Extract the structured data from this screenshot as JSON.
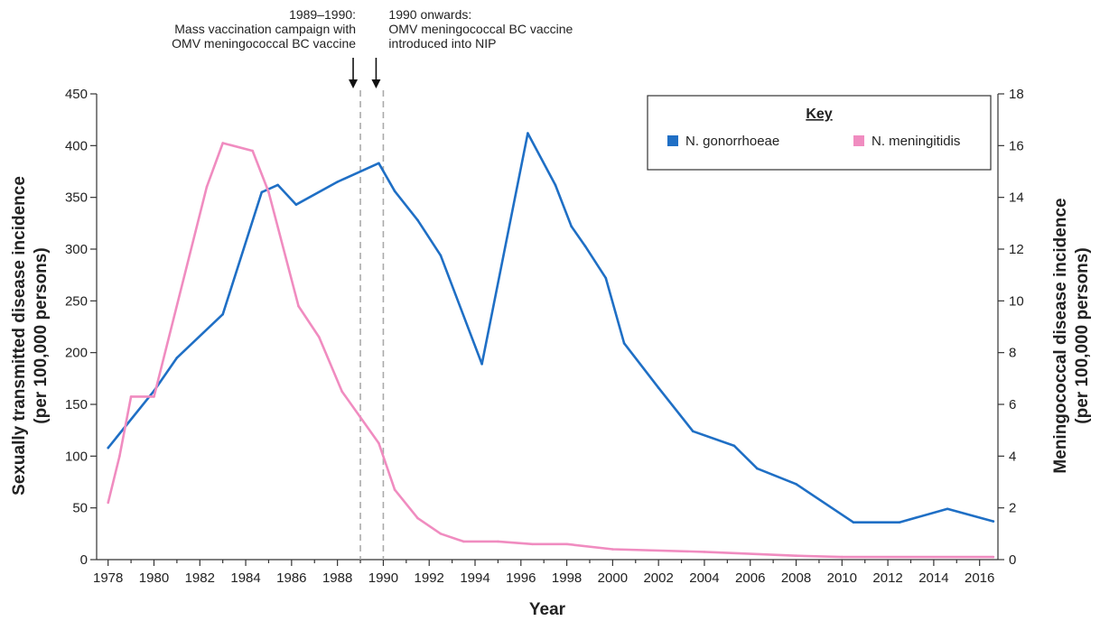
{
  "chart_data": {
    "type": "line",
    "xlabel": "Year",
    "ylabel_left": [
      "Sexually transmitted disease incidence",
      "(per 100,000 persons)"
    ],
    "ylabel_right": [
      "Meningococcal disease incidence",
      "(per 100,000 persons)"
    ],
    "xlim": [
      1977.5,
      2016.8
    ],
    "ylim_left": [
      0,
      450
    ],
    "ylim_right": [
      0,
      18
    ],
    "x_ticks": [
      1978,
      1980,
      1982,
      1984,
      1986,
      1988,
      1990,
      1992,
      1994,
      1996,
      1998,
      2000,
      2002,
      2004,
      2006,
      2008,
      2010,
      2012,
      2014,
      2016
    ],
    "x_tick_labels": [
      "1978",
      "1980",
      "1982",
      "1984",
      "1986",
      "1988",
      "1990",
      "1992",
      "1994",
      "1996",
      "1998",
      "2000",
      "2002",
      "2004",
      "2006",
      "2008",
      "2010",
      "2012",
      "2014",
      "2016"
    ],
    "y_ticks_left": [
      0,
      50,
      100,
      150,
      200,
      250,
      300,
      350,
      400,
      450
    ],
    "y_tick_labels_left": [
      "0",
      "50",
      "100",
      "150",
      "200",
      "250",
      "300",
      "350",
      "400",
      "450"
    ],
    "y_ticks_right": [
      0,
      2,
      4,
      6,
      8,
      10,
      12,
      14,
      16,
      18
    ],
    "y_tick_labels_right": [
      "0",
      "2",
      "4",
      "6",
      "8",
      "10",
      "12",
      "14",
      "16",
      "18"
    ],
    "grid": false,
    "legend": {
      "title": "Key",
      "placement": "top-right",
      "entries": [
        {
          "label": "N. gonorrhoeae",
          "color": "#1f6fc5"
        },
        {
          "label": "N. meningitidis",
          "color": "#f08cc0"
        }
      ]
    },
    "series": [
      {
        "name": "N. gonorrhoeae",
        "axis": "left",
        "color": "#1f6fc5",
        "x": [
          1978,
          1980,
          1981,
          1983,
          1984.7,
          1985.4,
          1986.2,
          1988,
          1989.8,
          1990.5,
          1991.5,
          1992.5,
          1994.3,
          1996.3,
          1997.5,
          1998.2,
          1998.8,
          1999.7,
          2000.5,
          2002,
          2003.5,
          2005.3,
          2006.3,
          2008,
          2010.5,
          2012.5,
          2014.6,
          2016.6
        ],
        "y": [
          108,
          163,
          195,
          237,
          355,
          362,
          343,
          365,
          383,
          356,
          328,
          294,
          189,
          412,
          362,
          322,
          303,
          272,
          209,
          166,
          124,
          110,
          88,
          73,
          36,
          36,
          49,
          37
        ]
      },
      {
        "name": "N. meningitidis",
        "axis": "right",
        "color": "#f08cc0",
        "x": [
          1978,
          1978.5,
          1979,
          1980,
          1982.3,
          1983,
          1984.3,
          1985,
          1986.3,
          1987.2,
          1988.2,
          1989,
          1989.8,
          1990.5,
          1991.5,
          1992.5,
          1993.5,
          1995,
          1996.5,
          1998,
          2000,
          2004,
          2008,
          2010,
          2016.6
        ],
        "y": [
          2.2,
          4.0,
          6.3,
          6.3,
          14.4,
          16.1,
          15.8,
          14.2,
          9.8,
          8.6,
          6.5,
          5.5,
          4.5,
          2.7,
          1.6,
          1.0,
          0.7,
          0.7,
          0.6,
          0.6,
          0.4,
          0.3,
          0.15,
          0.1,
          0.1
        ]
      }
    ],
    "annotations": [
      {
        "id": "campaign",
        "x": 1989,
        "lines": [
          "1989–1990:",
          "Mass vaccination campaign with",
          "OMV meningococcal BC vaccine"
        ],
        "align": "right"
      },
      {
        "id": "nip",
        "x": 1990,
        "lines": [
          "1990 onwards:",
          "OMV meningococcal BC vaccine",
          "introduced into NIP"
        ],
        "align": "left"
      }
    ],
    "vlines": [
      1989,
      1990
    ]
  }
}
